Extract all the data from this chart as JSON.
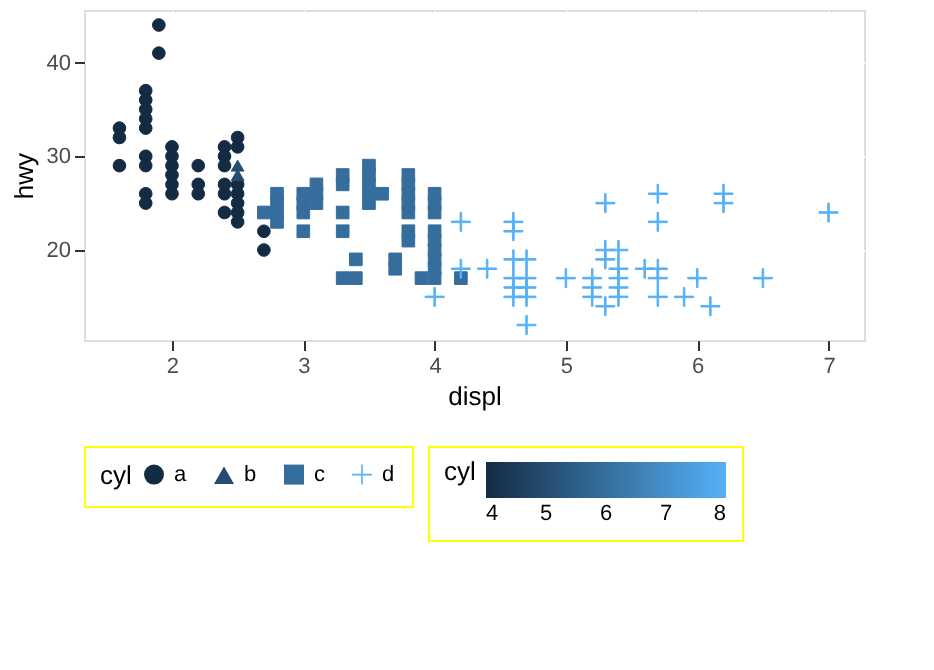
{
  "chart_data": {
    "type": "scatter",
    "xlabel": "displ",
    "ylabel": "hwy",
    "legend_title": "cyl",
    "clabel": "cyl",
    "xlim": [
      1.33,
      7.27
    ],
    "ylim": [
      10.4,
      45.6
    ],
    "xticks": [
      2,
      3,
      4,
      5,
      6,
      7
    ],
    "yticks": [
      20,
      30,
      40
    ],
    "grid": true,
    "legend": "bottom",
    "clim": [
      4,
      8
    ],
    "cticks": [
      4,
      5,
      6,
      7,
      8
    ],
    "series": [
      {
        "name": "a",
        "color": "#132b43",
        "marker": "circle",
        "x": [
          1.6,
          1.6,
          1.6,
          1.8,
          1.8,
          1.8,
          1.8,
          1.8,
          1.8,
          1.8,
          1.8,
          1.8,
          1.9,
          1.9,
          2.0,
          2.0,
          2.0,
          2.0,
          2.0,
          2.0,
          2.2,
          2.2,
          2.2,
          2.4,
          2.4,
          2.4,
          2.4,
          2.4,
          2.4,
          2.5,
          2.5,
          2.5,
          2.5,
          2.5,
          2.5,
          2.5,
          2.7,
          2.7
        ],
        "values": [
          33,
          32,
          29,
          37,
          36,
          35,
          34,
          33,
          30,
          29,
          26,
          25,
          44,
          41,
          31,
          30,
          29,
          28,
          27,
          26,
          29,
          27,
          26,
          31,
          30,
          29,
          27,
          26,
          24,
          32,
          31,
          27,
          26,
          25,
          24,
          23,
          22,
          20
        ],
        "cvalues": [
          4,
          4,
          4,
          4,
          4,
          4,
          4,
          4,
          4,
          4,
          4,
          4,
          4,
          4,
          4,
          4,
          4,
          4,
          4,
          4,
          4,
          4,
          4,
          4,
          4,
          4,
          4,
          4,
          4,
          4,
          4,
          4,
          4,
          4,
          4,
          4,
          4,
          4
        ]
      },
      {
        "name": "b",
        "color": "#244c70",
        "marker": "triangle",
        "x": [
          2.5,
          2.5
        ],
        "values": [
          29,
          28
        ],
        "cvalues": [
          5,
          5
        ]
      },
      {
        "name": "c",
        "color": "#356e9d",
        "marker": "square",
        "x": [
          2.7,
          2.8,
          2.8,
          2.8,
          2.8,
          3.0,
          3.0,
          3.0,
          3.0,
          3.1,
          3.1,
          3.1,
          3.3,
          3.3,
          3.3,
          3.3,
          3.3,
          3.4,
          3.4,
          3.5,
          3.5,
          3.5,
          3.5,
          3.5,
          3.6,
          3.7,
          3.7,
          3.8,
          3.8,
          3.8,
          3.8,
          3.8,
          3.8,
          3.8,
          3.9,
          4.0,
          4.0,
          4.0,
          4.0,
          4.0,
          4.0,
          4.0,
          4.0,
          4.0,
          4.2
        ],
        "values": [
          24,
          26,
          25,
          24,
          23,
          26,
          25,
          24,
          22,
          27,
          26,
          25,
          28,
          27,
          24,
          22,
          17,
          19,
          17,
          29,
          28,
          27,
          26,
          25,
          26,
          19,
          18,
          28,
          27,
          26,
          25,
          24,
          22,
          21,
          17,
          26,
          25,
          24,
          22,
          21,
          20,
          19,
          18,
          17,
          17
        ],
        "cvalues": [
          6,
          6,
          6,
          6,
          6,
          6,
          6,
          6,
          6,
          6,
          6,
          6,
          6,
          6,
          6,
          6,
          6,
          6,
          6,
          6,
          6,
          6,
          6,
          6,
          6,
          6,
          6,
          6,
          6,
          6,
          6,
          6,
          6,
          6,
          6,
          6,
          6,
          6,
          6,
          6,
          6,
          6,
          6,
          6,
          6
        ]
      },
      {
        "name": "d",
        "color": "#56b1f7",
        "marker": "cross",
        "x": [
          4.0,
          4.2,
          4.2,
          4.4,
          4.6,
          4.6,
          4.6,
          4.6,
          4.6,
          4.6,
          4.7,
          4.7,
          4.7,
          4.7,
          4.7,
          5.0,
          5.2,
          5.2,
          5.2,
          5.3,
          5.3,
          5.3,
          5.3,
          5.4,
          5.4,
          5.4,
          5.4,
          5.4,
          5.6,
          5.7,
          5.7,
          5.7,
          5.7,
          5.7,
          5.9,
          6.0,
          6.1,
          6.2,
          6.2,
          6.5,
          7.0
        ],
        "values": [
          15,
          23,
          18,
          18,
          23,
          22,
          19,
          17,
          16,
          15,
          19,
          17,
          16,
          15,
          12,
          17,
          17,
          16,
          15,
          25,
          20,
          19,
          14,
          20,
          18,
          17,
          16,
          15,
          18,
          26,
          23,
          18,
          17,
          15,
          15,
          17,
          14,
          26,
          25,
          17,
          24
        ],
        "cvalues": [
          8,
          8,
          8,
          8,
          8,
          8,
          8,
          8,
          8,
          8,
          8,
          8,
          8,
          8,
          8,
          8,
          8,
          8,
          8,
          8,
          8,
          8,
          8,
          8,
          8,
          8,
          8,
          8,
          8,
          8,
          8,
          8,
          8,
          8,
          8,
          8,
          8,
          8,
          8,
          8,
          8
        ]
      }
    ]
  }
}
